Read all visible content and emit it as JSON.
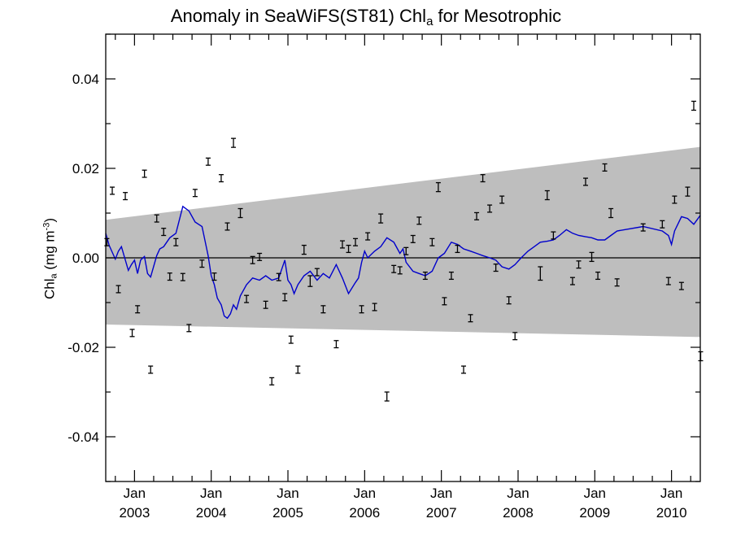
{
  "chart_data": {
    "type": "line",
    "title": {
      "main": "Anomaly in SeaWiFS(ST81) Chl",
      "sub": "a",
      "tail": " for Mesotrophic"
    },
    "ylabel": {
      "main": "Chl",
      "sub": "a",
      "mid": " (mg m",
      "sup": "-3",
      "tail": ")"
    },
    "xlabel": "",
    "ylim": [
      -0.05,
      0.05
    ],
    "xlim": [
      2002.625,
      2010.375
    ],
    "yticks": [
      -0.04,
      -0.02,
      0.0,
      0.02,
      0.04
    ],
    "ytick_labels": [
      "-0.04",
      "-0.02",
      "0.00",
      "0.02",
      "0.04"
    ],
    "xticks": [
      2003.0,
      2004.0,
      2005.0,
      2006.0,
      2007.0,
      2008.0,
      2009.0,
      2010.0
    ],
    "xtick_month": "Jan",
    "xtick_years": [
      "2003",
      "2004",
      "2005",
      "2006",
      "2007",
      "2008",
      "2009",
      "2010"
    ],
    "zero_line": 0.0,
    "band": {
      "x": [
        2002.625,
        2010.375
      ],
      "upper": [
        0.0085,
        0.0248
      ],
      "lower": [
        -0.0149,
        -0.0177
      ]
    },
    "series": [
      {
        "kind": "anomaly_errorbars",
        "x": [
          2002.64,
          2002.71,
          2002.79,
          2002.88,
          2002.97,
          2003.04,
          2003.13,
          2003.21,
          2003.29,
          2003.38,
          2003.46,
          2003.54,
          2003.63,
          2003.71,
          2003.79,
          2003.88,
          2003.96,
          2004.04,
          2004.13,
          2004.21,
          2004.29,
          2004.38,
          2004.46,
          2004.54,
          2004.63,
          2004.71,
          2004.79,
          2004.88,
          2004.96,
          2005.04,
          2005.13,
          2005.21,
          2005.29,
          2005.38,
          2005.46,
          2005.63,
          2005.71,
          2005.79,
          2005.88,
          2005.96,
          2006.04,
          2006.13,
          2006.21,
          2006.29,
          2006.38,
          2006.46,
          2006.54,
          2006.63,
          2006.71,
          2006.79,
          2006.88,
          2006.96,
          2007.04,
          2007.13,
          2007.21,
          2007.29,
          2007.38,
          2007.46,
          2007.54,
          2007.63,
          2007.71,
          2007.79,
          2007.88,
          2007.96,
          2008.29,
          2008.38,
          2008.46,
          2008.71,
          2008.79,
          2008.88,
          2008.96,
          2009.04,
          2009.13,
          2009.21,
          2009.29,
          2009.63,
          2009.88,
          2009.96,
          2010.04,
          2010.13,
          2010.21,
          2010.29,
          2010.38
        ],
        "y": [
          0.0035,
          0.015,
          -0.007,
          0.0138,
          -0.0168,
          -0.0115,
          0.0188,
          -0.025,
          0.0088,
          0.0058,
          -0.0042,
          0.0035,
          -0.0043,
          -0.0157,
          0.0145,
          -0.0013,
          0.0215,
          -0.0042,
          0.0178,
          0.007,
          0.0257,
          0.01,
          -0.0092,
          -0.0005,
          0.0002,
          -0.0105,
          -0.0276,
          -0.0043,
          -0.0088,
          -0.0183,
          -0.025,
          0.0018,
          -0.0052,
          -0.0032,
          -0.0115,
          -0.0193,
          0.003,
          0.002,
          0.0035,
          -0.0115,
          0.0048,
          -0.011,
          0.0088,
          -0.031,
          -0.0025,
          -0.0028,
          0.0015,
          0.0042,
          0.0083,
          -0.004,
          0.0035,
          0.0158,
          -0.0097,
          -0.004,
          0.002,
          -0.025,
          -0.0135,
          0.0093,
          0.0178,
          0.011,
          -0.0022,
          0.013,
          -0.0095,
          -0.0175,
          -0.0035,
          0.014,
          0.005,
          -0.0052,
          -0.0015,
          0.017,
          0.0002,
          -0.004,
          0.0202,
          0.01,
          -0.0055,
          0.0068,
          0.0075,
          -0.0052,
          0.013,
          -0.0063,
          0.0148,
          0.034,
          -0.022
        ],
        "err": [
          0.0008,
          0.0008,
          0.0008,
          0.0008,
          0.0008,
          0.0008,
          0.0008,
          0.0008,
          0.0008,
          0.0008,
          0.0008,
          0.0008,
          0.0008,
          0.0008,
          0.0008,
          0.0008,
          0.0008,
          0.0008,
          0.0008,
          0.0008,
          0.001,
          0.001,
          0.0008,
          0.0008,
          0.0008,
          0.0008,
          0.0008,
          0.0008,
          0.0008,
          0.0008,
          0.0008,
          0.001,
          0.0012,
          0.0008,
          0.0008,
          0.0008,
          0.0008,
          0.0008,
          0.0008,
          0.0008,
          0.0008,
          0.0008,
          0.001,
          0.001,
          0.0008,
          0.0008,
          0.0008,
          0.0008,
          0.0008,
          0.0008,
          0.0008,
          0.001,
          0.0008,
          0.0008,
          0.0008,
          0.0008,
          0.0008,
          0.0008,
          0.0008,
          0.0008,
          0.0008,
          0.0008,
          0.0008,
          0.0008,
          0.0015,
          0.001,
          0.0008,
          0.0008,
          0.0008,
          0.0008,
          0.001,
          0.0008,
          0.0008,
          0.001,
          0.0008,
          0.0008,
          0.0008,
          0.0008,
          0.0008,
          0.0008,
          0.001,
          0.001,
          0.001
        ],
        "color": "#000000"
      },
      {
        "kind": "smoothed_line",
        "x": [
          2002.625,
          2002.67,
          2002.75,
          2002.79,
          2002.83,
          2002.92,
          2002.96,
          2003.0,
          2003.04,
          2003.08,
          2003.13,
          2003.17,
          2003.21,
          2003.29,
          2003.33,
          2003.38,
          2003.46,
          2003.54,
          2003.63,
          2003.71,
          2003.79,
          2003.88,
          2003.96,
          2004.0,
          2004.04,
          2004.08,
          2004.13,
          2004.17,
          2004.21,
          2004.25,
          2004.29,
          2004.33,
          2004.38,
          2004.46,
          2004.54,
          2004.63,
          2004.71,
          2004.79,
          2004.88,
          2004.96,
          2005.0,
          2005.04,
          2005.08,
          2005.13,
          2005.21,
          2005.29,
          2005.38,
          2005.46,
          2005.54,
          2005.63,
          2005.71,
          2005.79,
          2005.88,
          2005.92,
          2005.96,
          2006.0,
          2006.04,
          2006.13,
          2006.21,
          2006.29,
          2006.38,
          2006.46,
          2006.5,
          2006.54,
          2006.63,
          2006.71,
          2006.79,
          2006.88,
          2006.96,
          2007.04,
          2007.13,
          2007.21,
          2007.29,
          2007.38,
          2007.46,
          2007.54,
          2007.63,
          2007.71,
          2007.79,
          2007.88,
          2007.96,
          2008.04,
          2008.13,
          2008.21,
          2008.29,
          2008.38,
          2008.46,
          2008.54,
          2008.63,
          2008.71,
          2008.79,
          2008.88,
          2008.96,
          2009.04,
          2009.13,
          2009.21,
          2009.29,
          2009.63,
          2009.88,
          2009.96,
          2010.0,
          2010.04,
          2010.13,
          2010.21,
          2010.29,
          2010.375
        ],
        "y": [
          0.0055,
          0.0028,
          -0.0003,
          0.0015,
          0.0025,
          -0.0028,
          -0.0015,
          -0.0005,
          -0.0035,
          -0.0005,
          0.0003,
          -0.0035,
          -0.0043,
          0.0005,
          0.002,
          0.0025,
          0.0045,
          0.0055,
          0.0115,
          0.0105,
          0.008,
          0.007,
          0.0005,
          -0.004,
          -0.006,
          -0.009,
          -0.0105,
          -0.013,
          -0.0135,
          -0.0125,
          -0.0105,
          -0.0115,
          -0.0085,
          -0.006,
          -0.0045,
          -0.005,
          -0.004,
          -0.005,
          -0.0045,
          -0.0005,
          -0.005,
          -0.006,
          -0.008,
          -0.006,
          -0.004,
          -0.003,
          -0.005,
          -0.0035,
          -0.0045,
          -0.0015,
          -0.0045,
          -0.008,
          -0.0055,
          -0.0045,
          -0.001,
          0.0015,
          0.0,
          0.0015,
          0.0025,
          0.0045,
          0.0035,
          0.001,
          0.002,
          -0.001,
          -0.003,
          -0.0035,
          -0.004,
          -0.003,
          0.0,
          0.001,
          0.0035,
          0.003,
          0.002,
          0.0015,
          0.001,
          0.0005,
          0.0,
          -0.0005,
          -0.002,
          -0.0025,
          -0.0015,
          0.0,
          0.0015,
          0.0025,
          0.0035,
          0.0037,
          0.004,
          0.005,
          0.0063,
          0.0055,
          0.005,
          0.0047,
          0.0045,
          0.004,
          0.004,
          0.005,
          0.006,
          0.007,
          0.006,
          0.005,
          0.003,
          0.006,
          0.0092,
          0.0088,
          0.0075,
          0.0095
        ],
        "color": "#0000cc"
      }
    ],
    "colors": {
      "band": "#bebebe",
      "line": "#0000cc",
      "errorbars": "#000000",
      "axes": "#000000"
    },
    "grid": false
  }
}
